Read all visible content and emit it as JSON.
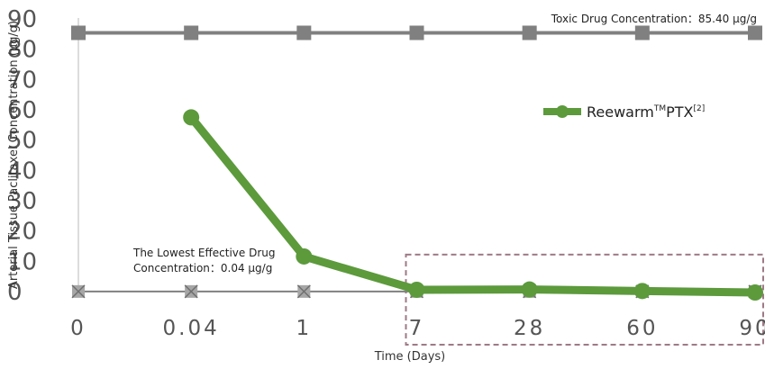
{
  "chart_data": {
    "type": "line",
    "xlabel": "Time (Days)",
    "ylabel": "Arterial Tissue Paclitaxel Concentration (μg/g)",
    "ylim": [
      0,
      90
    ],
    "yticks": [
      "0",
      "10",
      "20",
      "30",
      "40",
      "50",
      "60",
      "70",
      "80",
      "90"
    ],
    "categories": [
      "0",
      "0.04",
      "1",
      "7",
      "28",
      "60",
      "90"
    ],
    "series": [
      {
        "name": "Reewarm™PTX[2]",
        "legend": {
          "base": "Reewarm",
          "tm": "TM",
          "rest": "PTX",
          "ref": "[2]"
        },
        "color": "#5c9a3c",
        "values": [
          null,
          57.5,
          11.6,
          0.6,
          0.7,
          0.2,
          -0.3
        ]
      },
      {
        "name": "",
        "color": "#808080",
        "values": [
          85.4,
          85.4,
          85.4,
          85.4,
          85.4,
          85.4,
          85.4
        ]
      },
      {
        "name": "",
        "color": "#808080",
        "values": [
          0.04,
          0.04,
          0.04,
          0.04,
          0.04,
          0.04,
          0.04
        ]
      }
    ],
    "annotations": [
      {
        "text": "Toxic Drug Concentration：85.40 μg/g"
      },
      {
        "line1": "The Lowest Effective Drug",
        "line2": "Concentration：0.04 μg/g"
      }
    ],
    "highlight_box": {
      "from_category": "7",
      "to_category": "90",
      "color": "#9e7a86",
      "style": "dashed"
    },
    "legend_position": "right"
  }
}
